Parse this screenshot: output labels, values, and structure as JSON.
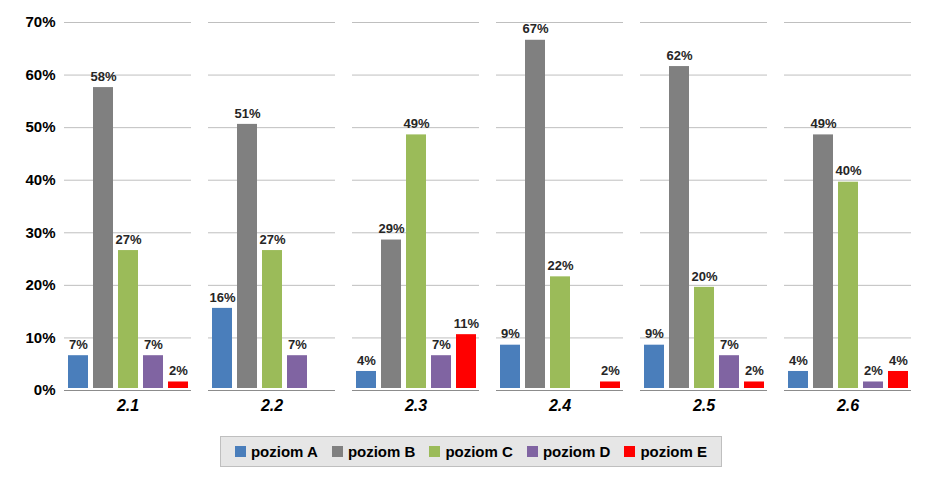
{
  "chart_data": {
    "type": "bar",
    "categories": [
      "2.1",
      "2.2",
      "2.3",
      "2.4",
      "2.5",
      "2.6"
    ],
    "series": [
      {
        "name": "poziom A",
        "color": "#4a7ebb",
        "values": [
          7,
          16,
          4,
          9,
          9,
          4
        ],
        "value_labels": [
          "7%",
          "16%",
          "4%",
          "9%",
          "9%",
          "4%"
        ]
      },
      {
        "name": "poziom B",
        "color": "#808080",
        "values": [
          58,
          51,
          29,
          67,
          62,
          49
        ],
        "value_labels": [
          "58%",
          "51%",
          "29%",
          "67%",
          "62%",
          "49%"
        ]
      },
      {
        "name": "poziom C",
        "color": "#9bbb59",
        "values": [
          27,
          27,
          49,
          22,
          20,
          40
        ],
        "value_labels": [
          "27%",
          "27%",
          "49%",
          "22%",
          "20%",
          "40%"
        ]
      },
      {
        "name": "poziom D",
        "color": "#8064a2",
        "values": [
          7,
          7,
          7,
          null,
          7,
          2
        ],
        "value_labels": [
          "7%",
          "7%",
          "7%",
          null,
          "7%",
          "2%"
        ]
      },
      {
        "name": "poziom E",
        "color": "#ff0000",
        "values": [
          2,
          null,
          11,
          2,
          2,
          4
        ],
        "value_labels": [
          "2%",
          null,
          "11%",
          "2%",
          "2%",
          "4%"
        ]
      }
    ],
    "ylim": [
      0,
      70
    ],
    "yticks": [
      {
        "value": 0,
        "label": "0%"
      },
      {
        "value": 10,
        "label": "10%"
      },
      {
        "value": 20,
        "label": "20%"
      },
      {
        "value": 30,
        "label": "30%"
      },
      {
        "value": 40,
        "label": "40%"
      },
      {
        "value": 50,
        "label": "50%"
      },
      {
        "value": 60,
        "label": "60%"
      },
      {
        "value": 70,
        "label": "70%"
      }
    ],
    "grid": true,
    "data_labels": true,
    "legend": "bottom"
  }
}
